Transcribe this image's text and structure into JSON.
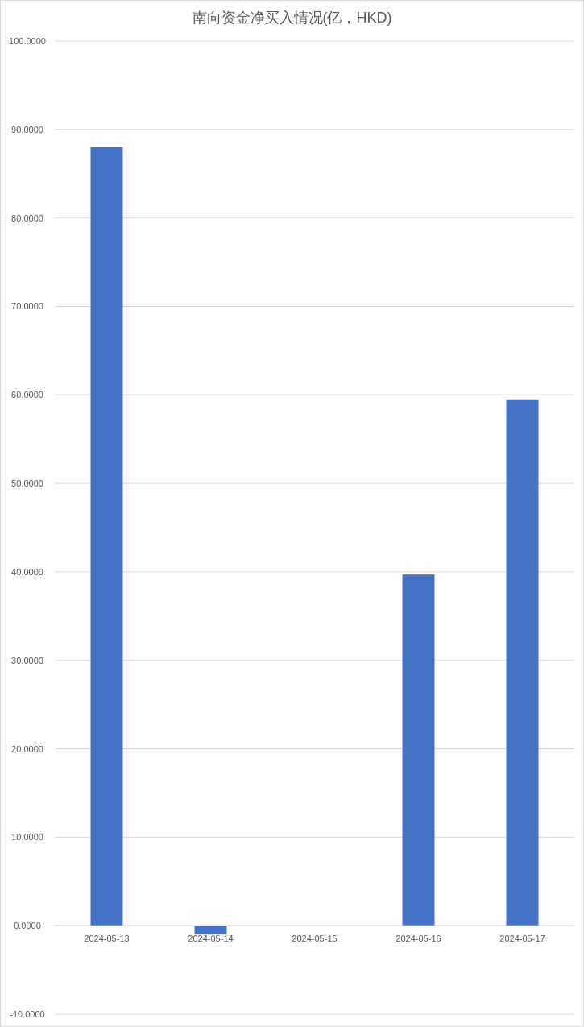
{
  "chart_data": {
    "type": "bar",
    "title": "南向资金净买入情况(亿，HKD)",
    "categories": [
      "2024-05-13",
      "2024-05-14",
      "2024-05-15",
      "2024-05-16",
      "2024-05-17"
    ],
    "series": [
      {
        "color": "#4472c4",
        "values": [
          88.0,
          -1.0,
          null,
          39.7,
          59.5
        ]
      }
    ],
    "ylim": [
      -10,
      100
    ],
    "yticks": [
      {
        "value": -10,
        "label": "-10.0000"
      },
      {
        "value": 0,
        "label": "0.0000"
      },
      {
        "value": 10,
        "label": "10.0000"
      },
      {
        "value": 20,
        "label": "20.0000"
      },
      {
        "value": 30,
        "label": "30.0000"
      },
      {
        "value": 40,
        "label": "40.0000"
      },
      {
        "value": 50,
        "label": "50.0000"
      },
      {
        "value": 60,
        "label": "60.0000"
      },
      {
        "value": 70,
        "label": "70.0000"
      },
      {
        "value": 80,
        "label": "80.0000"
      },
      {
        "value": 90,
        "label": "90.0000"
      },
      {
        "value": 100,
        "label": "100.0000"
      }
    ],
    "grid": "y"
  }
}
